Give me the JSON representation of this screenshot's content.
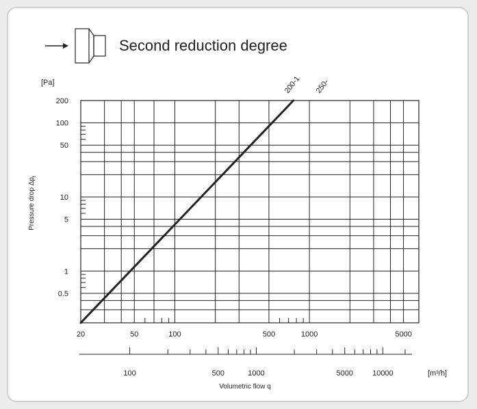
{
  "header": {
    "title": "Second reduction degree",
    "icon": "reducer-icon"
  },
  "chart_data": {
    "type": "line",
    "title": "Second reduction degree",
    "yunit": "[Pa]",
    "ylabel": "Pressure drop Δp",
    "ylabel_sub": "t",
    "xlabel": "Volumetric flow q",
    "xunit": "[m³/h]",
    "xscale": "log",
    "yscale": "log",
    "xlim": [
      20,
      6500
    ],
    "ylim": [
      0.2,
      200
    ],
    "xticks": [
      "20",
      "50",
      "100",
      "500",
      "1000",
      "5000"
    ],
    "yticks": [
      "200",
      "100",
      "50",
      "10",
      "5",
      "1",
      "0.5"
    ],
    "secondary_xticks": [
      "100",
      "500",
      "1000",
      "5000",
      "10000"
    ],
    "series": [
      {
        "name": "200-1",
        "x": [
          20,
          760
        ],
        "y": [
          0.2,
          200
        ]
      }
    ],
    "annotations": [
      "200-1",
      "250-"
    ],
    "grid": true
  }
}
